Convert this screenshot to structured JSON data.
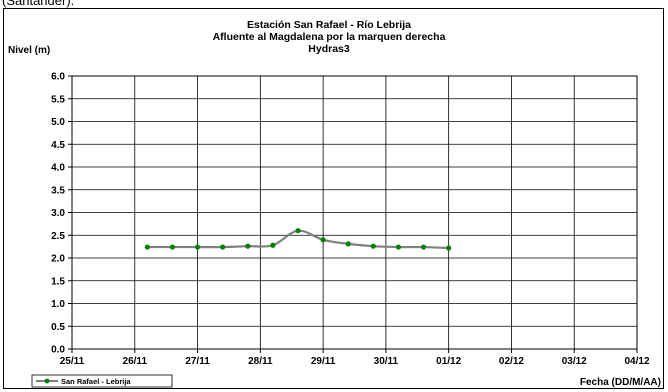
{
  "top_fragment": "(Santander).",
  "chart_data": {
    "type": "line",
    "title": [
      "Estación San Rafael - Río Lebrija",
      "Afluente al Magdalena por la marquen derecha",
      "Hydras3"
    ],
    "ylabel": "Nivel (m)",
    "xlabel": "Fecha (DD/M/AA)",
    "ylim": [
      0,
      6
    ],
    "yticks": [
      "0.0",
      "0.5",
      "1.0",
      "1.5",
      "2.0",
      "2.5",
      "3.0",
      "3.5",
      "4.0",
      "4.5",
      "5.0",
      "5.5",
      "6.0"
    ],
    "xlim": [
      0,
      9
    ],
    "xticks": [
      "25/11",
      "26/11",
      "27/11",
      "28/11",
      "29/11",
      "30/11",
      "01/12",
      "02/12",
      "03/12",
      "04/12"
    ],
    "grid": true,
    "legend_position": "bottom-left",
    "series": [
      {
        "name": "San Rafael - Lebrija",
        "line_color": "#808080",
        "marker_color": "#008000",
        "points": [
          [
            1.2,
            2.24
          ],
          [
            1.6,
            2.24
          ],
          [
            2.0,
            2.24
          ],
          [
            2.4,
            2.24
          ],
          [
            2.8,
            2.26
          ],
          [
            3.2,
            2.28
          ],
          [
            3.6,
            2.6
          ],
          [
            4.0,
            2.4
          ],
          [
            4.4,
            2.31
          ],
          [
            4.8,
            2.26
          ],
          [
            5.2,
            2.24
          ],
          [
            5.6,
            2.24
          ],
          [
            6.0,
            2.22
          ]
        ]
      }
    ]
  }
}
